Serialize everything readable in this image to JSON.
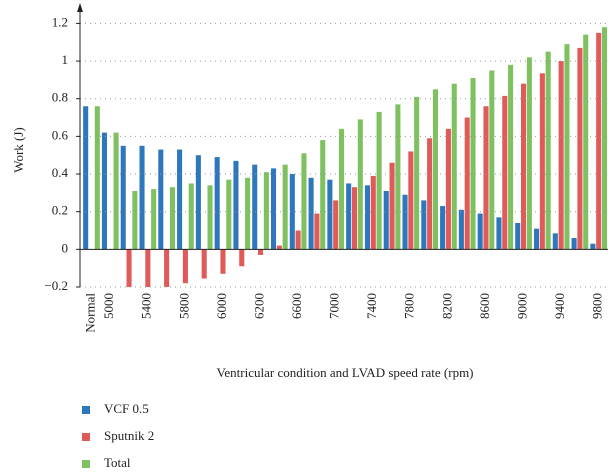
{
  "chart_data": {
    "type": "bar",
    "xlabel": "Ventricular condition and LVAD speed rate (rpm)",
    "ylabel": "Work (J)",
    "categories": [
      "Normal",
      "5000",
      null,
      "5400",
      null,
      "5800",
      null,
      "6000",
      null,
      "6200",
      null,
      "6600",
      null,
      "7000",
      null,
      "7400",
      null,
      "7800",
      null,
      "8200",
      null,
      "8600",
      null,
      "9000",
      null,
      "9400",
      null,
      "9800"
    ],
    "series": [
      {
        "name": "VCF 0.5",
        "color": "#2f77bd",
        "values": [
          0.76,
          0.62,
          0.55,
          0.55,
          0.53,
          0.53,
          0.5,
          0.49,
          0.47,
          0.45,
          0.43,
          0.4,
          0.38,
          0.37,
          0.35,
          0.34,
          0.31,
          0.29,
          0.26,
          0.23,
          0.21,
          0.19,
          0.17,
          0.14,
          0.11,
          0.085,
          0.06,
          0.03
        ]
      },
      {
        "name": "Sputnik 2",
        "color": "#e05a5a",
        "values": [
          0,
          0,
          -0.21,
          -0.2,
          -0.2,
          -0.18,
          -0.155,
          -0.13,
          -0.09,
          -0.03,
          0.02,
          0.1,
          0.19,
          0.26,
          0.33,
          0.39,
          0.46,
          0.52,
          0.59,
          0.64,
          0.7,
          0.76,
          0.815,
          0.88,
          0.935,
          1.0,
          1.07,
          1.15
        ]
      },
      {
        "name": "Total",
        "color": "#7fc160",
        "values": [
          0.76,
          0.62,
          0.31,
          0.32,
          0.33,
          0.35,
          0.34,
          0.37,
          0.38,
          0.41,
          0.45,
          0.51,
          0.58,
          0.64,
          0.69,
          0.73,
          0.77,
          0.81,
          0.85,
          0.88,
          0.91,
          0.95,
          0.98,
          1.02,
          1.05,
          1.09,
          1.14,
          1.18
        ]
      }
    ],
    "ylim": [
      -0.2,
      1.25
    ],
    "yticks": [
      {
        "value": -0.2,
        "label": "−0.2"
      },
      0,
      0.2,
      0.4,
      0.6,
      0.8,
      1,
      1.2
    ],
    "grid": true
  }
}
